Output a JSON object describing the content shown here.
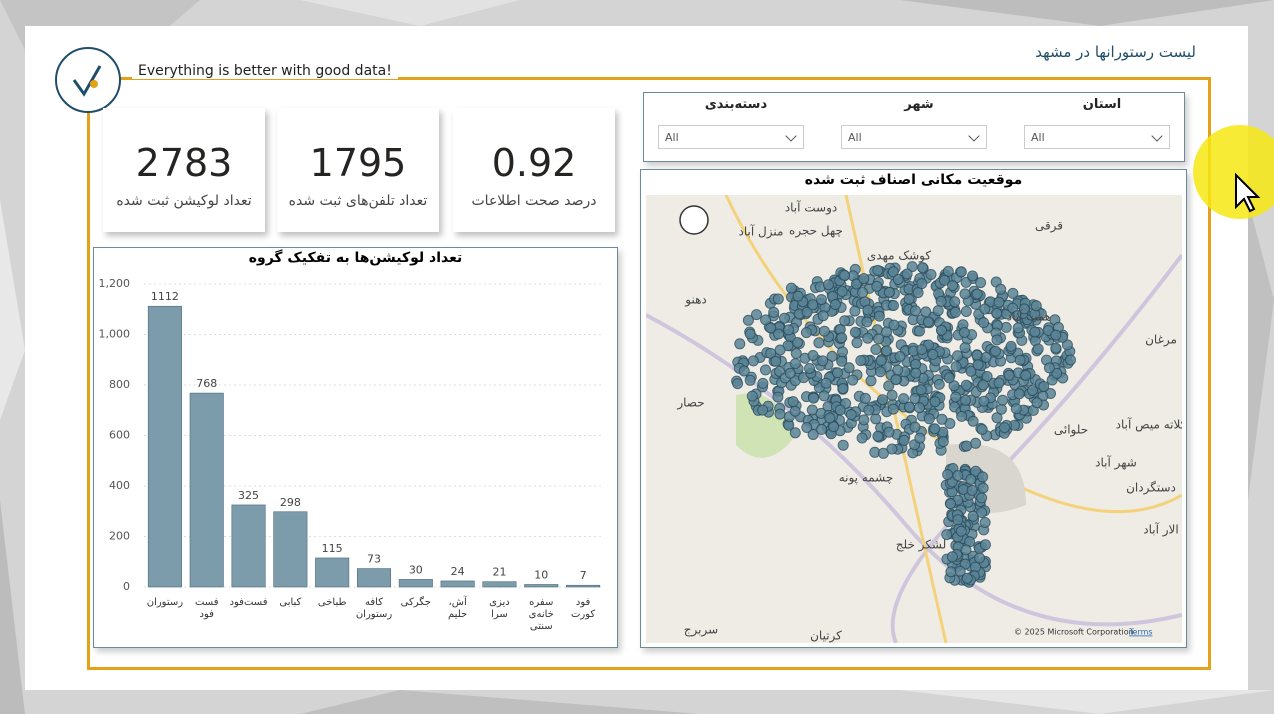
{
  "header": {
    "title": "لیست رستورانها در مشهد",
    "tagline": "Everything is better with good data!"
  },
  "kpis": [
    {
      "value": 2783,
      "label": "تعداد لوکیشن ثبت شده"
    },
    {
      "value": 1795,
      "label": "تعداد تلفن‌های ثبت شده"
    },
    {
      "value": 0.92,
      "label": "درصد صحت اطلاعات"
    }
  ],
  "slicers": [
    {
      "label": "استان",
      "value": "All"
    },
    {
      "label": "شهر",
      "value": "All"
    },
    {
      "label": "دسته‌بندی",
      "value": "All"
    }
  ],
  "map": {
    "title": "موقعیت مکانی اصناف ثبت شده",
    "places": [
      "دوست آباد",
      "چهل حجره",
      "منزل آباد",
      "قرقی",
      "کوشک مهدی",
      "دهنو",
      "همت آباد",
      "حصار",
      "حلوائی",
      "کلاته میص آباد",
      "شهر آباد",
      "دستگردان",
      "چشمه پونه",
      "لشکر خلج",
      "سربرج",
      "کرتیان",
      "مرغان",
      "الار آباد"
    ],
    "copyright": "© 2025 Microsoft Corporation",
    "terms": "Terms"
  },
  "chart_data": {
    "type": "bar",
    "title": "تعداد لوکیشن‌ها به تفکیک گروه",
    "categories": [
      "رستوران",
      "فست فود",
      "فست‌فود",
      "کبابی",
      "طباخی",
      "کافه رستوران",
      "جگرکی",
      "آش، حلیم",
      "دیزی سرا",
      "سفره خانه‌ی سنتی",
      "فود کورت"
    ],
    "values": [
      1112,
      768,
      325,
      298,
      115,
      73,
      30,
      24,
      21,
      10,
      7
    ],
    "color": "#7c9cab",
    "ylim": [
      0,
      1200
    ],
    "yticks": [
      0,
      200,
      400,
      600,
      800,
      {
        "value": 1000,
        "label": "1,000"
      },
      {
        "value": 1200,
        "label": "1,200"
      }
    ],
    "grid": true
  }
}
